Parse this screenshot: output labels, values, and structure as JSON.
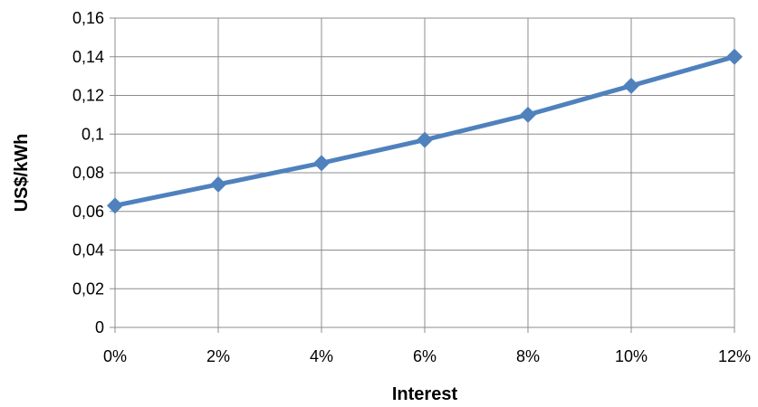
{
  "chart_data": {
    "type": "line",
    "title": "",
    "xlabel": "Interest",
    "ylabel": "US$/kWh",
    "categories": [
      "0%",
      "2%",
      "4%",
      "6%",
      "8%",
      "10%",
      "12%"
    ],
    "y_tick_labels": [
      "0",
      "0,02",
      "0,04",
      "0,06",
      "0,08",
      "0,1",
      "0,12",
      "0,14",
      "0,16"
    ],
    "y_ticks": [
      0,
      0.02,
      0.04,
      0.06,
      0.08,
      0.1,
      0.12,
      0.14,
      0.16
    ],
    "ylim": [
      0,
      0.16
    ],
    "grid": true,
    "series": [
      {
        "values": [
          0.063,
          0.074,
          0.085,
          0.097,
          0.11,
          0.125,
          0.14
        ],
        "color": "#4F81BD",
        "marker": "diamond"
      }
    ]
  }
}
